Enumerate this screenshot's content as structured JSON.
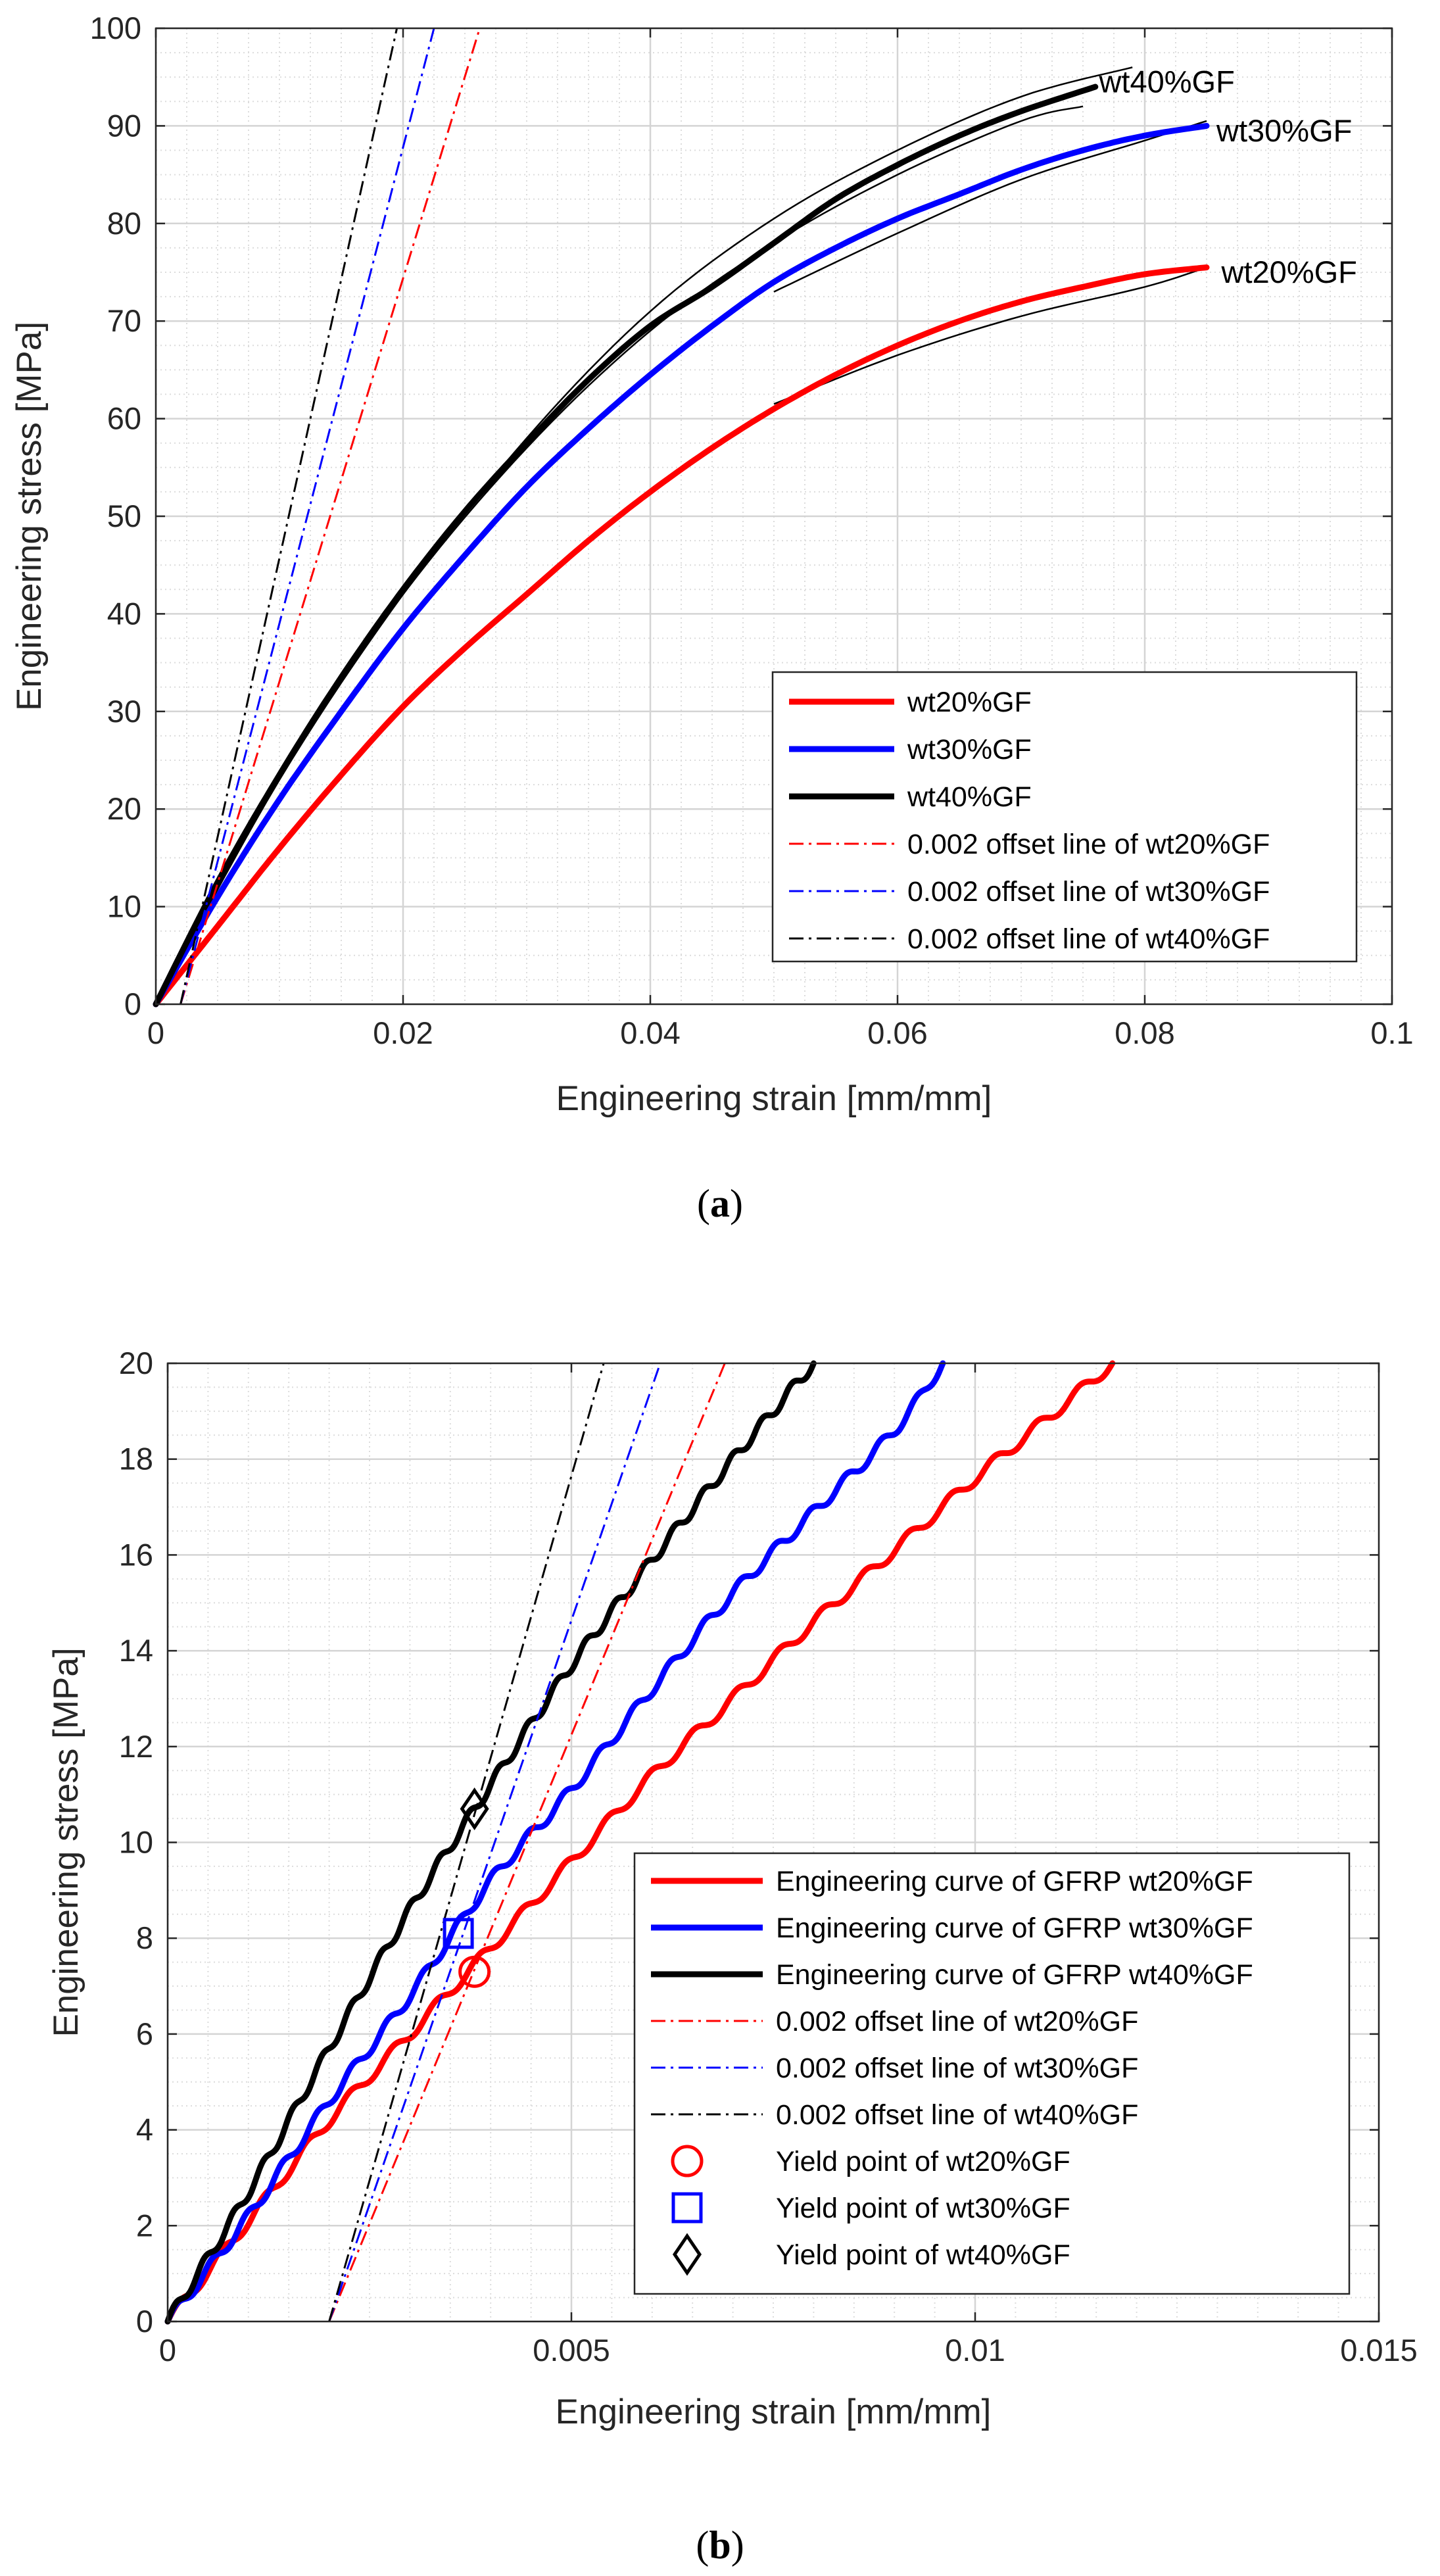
{
  "colors": {
    "red": "#ff0000",
    "blue": "#0000ff",
    "black": "#000000",
    "grid": "#dcdcdc",
    "axis": "#262626"
  },
  "chart_data": [
    {
      "panel": "a",
      "caption_label": "a",
      "type": "line",
      "xlabel": "Engineering strain [mm/mm]",
      "ylabel": "Engineering stress [MPa]",
      "xlim": [
        0,
        0.1
      ],
      "ylim": [
        0,
        100
      ],
      "xticks": [
        0,
        0.02,
        0.04,
        0.06,
        0.08,
        0.1
      ],
      "xtick_labels": [
        "0",
        "0.02",
        "0.04",
        "0.06",
        "0.08",
        "0.1"
      ],
      "yticks": [
        0,
        10,
        20,
        30,
        40,
        50,
        60,
        70,
        80,
        90,
        100
      ],
      "ytick_labels": [
        "0",
        "10",
        "20",
        "30",
        "40",
        "50",
        "60",
        "70",
        "80",
        "90",
        "100"
      ],
      "grid": true,
      "legend_position": "bottom-right",
      "series": [
        {
          "name": "wt20%GF",
          "color": "red",
          "style": "solid",
          "width": "thick",
          "x": [
            0,
            0.005,
            0.01,
            0.015,
            0.02,
            0.025,
            0.03,
            0.035,
            0.04,
            0.045,
            0.05,
            0.055,
            0.06,
            0.065,
            0.07,
            0.075,
            0.08,
            0.085
          ],
          "y": [
            0,
            8,
            16,
            23.5,
            30.5,
            36.5,
            42,
            47.5,
            52.5,
            57,
            61,
            64.5,
            67.5,
            70,
            72,
            73.5,
            74.8,
            75.5
          ]
        },
        {
          "name": "wt30%GF",
          "color": "blue",
          "style": "solid",
          "width": "thick",
          "x": [
            0,
            0.005,
            0.01,
            0.015,
            0.02,
            0.025,
            0.03,
            0.035,
            0.04,
            0.045,
            0.05,
            0.055,
            0.06,
            0.065,
            0.07,
            0.075,
            0.08,
            0.085
          ],
          "y": [
            0,
            11,
            21,
            30,
            38.5,
            46,
            53,
            59,
            64.5,
            69.5,
            74,
            77.5,
            80.5,
            83,
            85.5,
            87.5,
            89,
            90
          ]
        },
        {
          "name": "wt40%GF",
          "color": "black",
          "style": "solid",
          "width": "thick",
          "x": [
            0,
            0.005,
            0.01,
            0.015,
            0.02,
            0.025,
            0.03,
            0.035,
            0.04,
            0.045,
            0.05,
            0.055,
            0.06,
            0.065,
            0.07,
            0.076
          ],
          "y": [
            0,
            12.5,
            23.5,
            33.5,
            42.5,
            50.5,
            57.5,
            64,
            69.5,
            73.5,
            78,
            82.5,
            86,
            89,
            91.5,
            94
          ]
        },
        {
          "name": "0.002 offset line of wt20%GF",
          "color": "red",
          "style": "dashdot",
          "width": "thin",
          "x": [
            0.002,
            0.0262
          ],
          "y": [
            0,
            100
          ]
        },
        {
          "name": "0.002 offset line of wt30%GF",
          "color": "blue",
          "style": "dashdot",
          "width": "thin",
          "x": [
            0.002,
            0.0225
          ],
          "y": [
            0,
            100
          ]
        },
        {
          "name": "0.002 offset line of wt40%GF",
          "color": "black",
          "style": "dashdot",
          "width": "thin",
          "x": [
            0.002,
            0.0195
          ],
          "y": [
            0,
            100
          ]
        }
      ],
      "replicates": [
        {
          "color": "black",
          "x": [
            0,
            0.01,
            0.02,
            0.03,
            0.04,
            0.05,
            0.06,
            0.07,
            0.079
          ],
          "y": [
            0,
            23,
            42,
            58,
            71,
            80.5,
            87.5,
            93,
            96
          ]
        },
        {
          "color": "black",
          "x": [
            0,
            0.01,
            0.02,
            0.03,
            0.04,
            0.05,
            0.06,
            0.07,
            0.075
          ],
          "y": [
            0,
            23.5,
            42,
            57,
            69,
            78,
            85,
            90.5,
            92
          ]
        },
        {
          "color": "black",
          "x": [
            0.05,
            0.06,
            0.07,
            0.08,
            0.085
          ],
          "y": [
            73,
            79,
            84.5,
            88.5,
            90.5
          ]
        },
        {
          "color": "black",
          "x": [
            0.05,
            0.06,
            0.07,
            0.08,
            0.085
          ],
          "y": [
            61.5,
            66.5,
            70.5,
            73.5,
            75.5
          ]
        }
      ],
      "annotations": [
        {
          "text": "wt40%GF",
          "x": 0.0763,
          "y": 94.5
        },
        {
          "text": "wt30%GF",
          "x": 0.0858,
          "y": 89.5
        },
        {
          "text": "wt20%GF",
          "x": 0.0862,
          "y": 75.0
        }
      ],
      "legend": [
        "wt20%GF",
        "wt30%GF",
        "wt40%GF",
        "0.002 offset line of wt20%GF",
        "0.002 offset line of wt30%GF",
        "0.002 offset line of wt40%GF"
      ]
    },
    {
      "panel": "b",
      "caption_label": "b",
      "type": "line",
      "xlabel": "Engineering strain [mm/mm]",
      "ylabel": "Engineering stress [MPa]",
      "xlim": [
        0,
        0.015
      ],
      "ylim": [
        0,
        20
      ],
      "xticks": [
        0,
        0.005,
        0.01,
        0.015
      ],
      "xtick_labels": [
        "0",
        "0.005",
        "0.01",
        "0.015"
      ],
      "yticks": [
        0,
        2,
        4,
        6,
        8,
        10,
        12,
        14,
        16,
        18,
        20
      ],
      "ytick_labels": [
        "0",
        "2",
        "4",
        "6",
        "8",
        "10",
        "12",
        "14",
        "16",
        "18",
        "20"
      ],
      "grid": true,
      "legend_position": "bottom-right",
      "series": [
        {
          "name": "Engineering curve of GFRP wt20%GF",
          "color": "red",
          "style": "solid",
          "width": "thick",
          "wavy": true,
          "x": [
            0,
            0.001,
            0.002,
            0.003,
            0.004,
            0.005,
            0.006,
            0.007,
            0.008,
            0.009,
            0.01,
            0.011,
            0.0117
          ],
          "y": [
            0,
            2.1,
            4.2,
            6.0,
            7.8,
            9.6,
            11.4,
            13.0,
            14.6,
            16.1,
            17.6,
            19.0,
            20.0
          ]
        },
        {
          "name": "Engineering curve of GFRP wt30%GF",
          "color": "blue",
          "style": "solid",
          "width": "thick",
          "wavy": true,
          "x": [
            0,
            0.001,
            0.002,
            0.003,
            0.004,
            0.005,
            0.006,
            0.007,
            0.008,
            0.009,
            0.0096
          ],
          "y": [
            0,
            2.2,
            4.6,
            6.8,
            9.2,
            11.1,
            13.2,
            15.2,
            16.9,
            18.6,
            20.0
          ]
        },
        {
          "name": "Engineering curve of GFRP wt40%GF",
          "color": "black",
          "style": "solid",
          "width": "thick",
          "wavy": true,
          "x": [
            0,
            0.001,
            0.002,
            0.003,
            0.004,
            0.005,
            0.006,
            0.007,
            0.008
          ],
          "y": [
            0,
            2.7,
            5.7,
            8.6,
            11.2,
            13.7,
            15.9,
            18.0,
            20.0
          ]
        },
        {
          "name": "0.002 offset line of wt20%GF",
          "color": "red",
          "style": "dashdot",
          "width": "thin",
          "x": [
            0.002,
            0.0069
          ],
          "y": [
            0,
            20
          ]
        },
        {
          "name": "0.002 offset line of wt30%GF",
          "color": "blue",
          "style": "dashdot",
          "width": "thin",
          "x": [
            0.002,
            0.0061
          ],
          "y": [
            0,
            20
          ]
        },
        {
          "name": "0.002 offset line of wt40%GF",
          "color": "black",
          "style": "dashdot",
          "width": "thin",
          "x": [
            0.002,
            0.0054
          ],
          "y": [
            0,
            20
          ]
        }
      ],
      "markers": [
        {
          "name": "Yield point of wt20%GF",
          "shape": "circle",
          "color": "red",
          "x": 0.0038,
          "y": 7.3
        },
        {
          "name": "Yield point of wt30%GF",
          "shape": "square",
          "color": "blue",
          "x": 0.0036,
          "y": 8.1
        },
        {
          "name": "Yield point of wt40%GF",
          "shape": "diamond",
          "color": "black",
          "x": 0.0038,
          "y": 10.7
        }
      ],
      "legend": [
        "Engineering curve of GFRP wt20%GF",
        "Engineering curve of GFRP wt30%GF",
        "Engineering curve of GFRP wt40%GF",
        "0.002 offset line of wt20%GF",
        "0.002 offset line of wt30%GF",
        "0.002 offset line of wt40%GF",
        "Yield point of wt20%GF",
        "Yield point of wt30%GF",
        "Yield point of wt40%GF"
      ]
    }
  ]
}
